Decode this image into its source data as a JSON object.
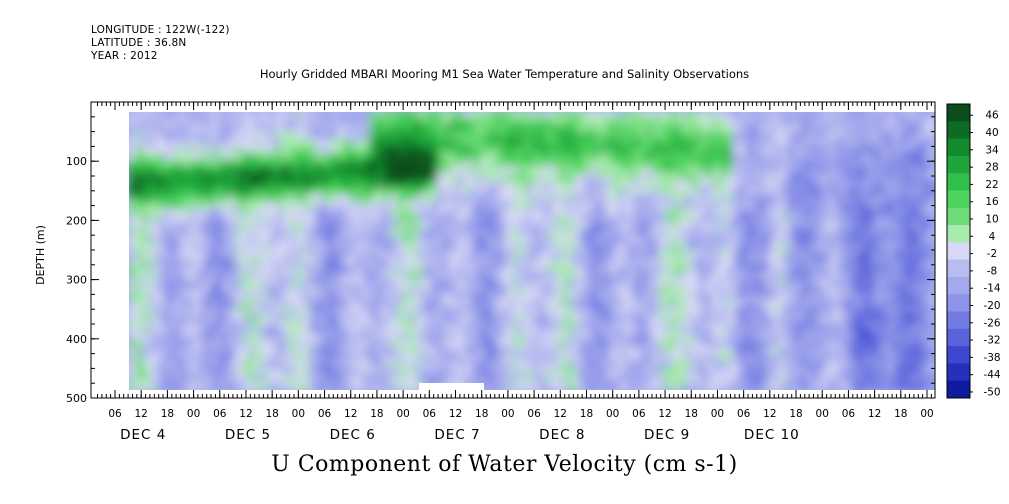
{
  "header": {
    "longitude": "LONGITUDE : 122W(-122)",
    "latitude": "LATITUDE : 36.8N",
    "year": "YEAR : 2012"
  },
  "subtitle": "Hourly Gridded MBARI Mooring M1 Sea Water Temperature and Salinity Observations",
  "main_title": "U Component of Water Velocity (cm s-1)",
  "chart_data": {
    "type": "heatmap",
    "title": "U Component of Water Velocity (cm s-1)",
    "subtitle": "Hourly Gridded MBARI Mooring M1 Sea Water Temperature and Salinity Observations",
    "ylabel": "DEPTH (m)",
    "xlabel": "",
    "y_ticks": [
      100,
      200,
      300,
      400,
      500
    ],
    "ylim": [
      500,
      0
    ],
    "y_reversed": true,
    "x_hour_ticks": [
      "06",
      "12",
      "18",
      "00",
      "06",
      "12",
      "18",
      "00",
      "06",
      "12",
      "18",
      "00",
      "06",
      "12",
      "18",
      "00",
      "06",
      "12",
      "18",
      "00",
      "06",
      "12",
      "18",
      "00",
      "06",
      "12",
      "18",
      "00",
      "06",
      "12",
      "18",
      "00"
    ],
    "x_day_labels": [
      "DEC 4",
      "DEC 5",
      "DEC 6",
      "DEC 7",
      "DEC 8",
      "DEC 9",
      "DEC 10"
    ],
    "colorbar": {
      "labels": [
        "46",
        "40",
        "34",
        "28",
        "22",
        "16",
        "10",
        "4",
        "-2",
        "-8",
        "-14",
        "-20",
        "-26",
        "-32",
        "-38",
        "-44",
        "-50"
      ],
      "min": -50,
      "max": 46
    },
    "colors": {
      "strong_green": "#0d6b24",
      "green": "#2fbf4a",
      "light_green": "#8fe39a",
      "pale": "#d8f0d8",
      "lavender": "#b8bdf0",
      "blue": "#8c93e8",
      "dark_blue": "#4a54d4"
    },
    "features": [
      {
        "description_level": "strong positive (~28 to 46)",
        "depth_range_m": [
          90,
          190
        ],
        "period": "DEC 4 to DEC 6"
      },
      {
        "description_level": "positive (~10 to 28)",
        "depth_range_m": [
          20,
          140
        ],
        "period": "DEC 6 to DEC 9"
      },
      {
        "description_level": "negative (~-8 to -20)",
        "depth_range_m": [
          100,
          500
        ],
        "period": "DEC 9 to DEC 10"
      }
    ],
    "grid": false
  }
}
